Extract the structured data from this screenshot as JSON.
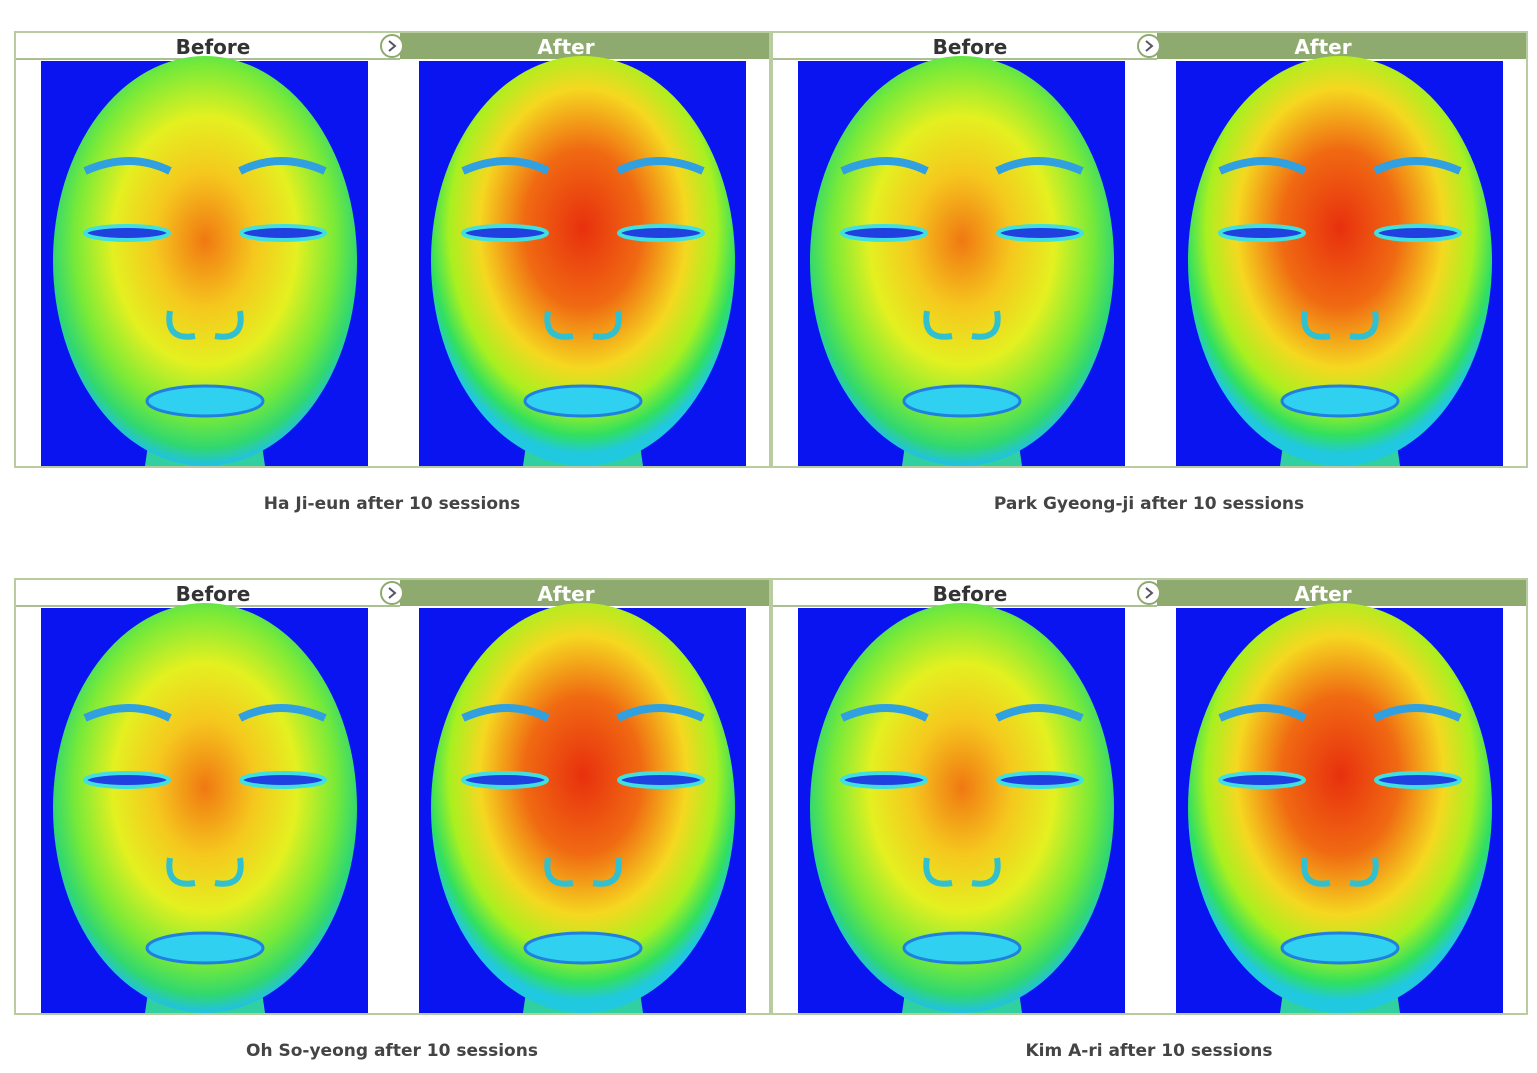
{
  "panels": [
    {
      "before": "Before",
      "after": "After",
      "caption": "Ha Ji-eun after 10 sessions"
    },
    {
      "before": "Before",
      "after": "After",
      "caption": "Park Gyeong-ji after 10 sessions"
    },
    {
      "before": "Before",
      "after": "After",
      "caption": "Oh So-yeong after 10 sessions"
    },
    {
      "before": "Before",
      "after": "After",
      "caption": "Kim A-ri after 10 sessions"
    }
  ]
}
